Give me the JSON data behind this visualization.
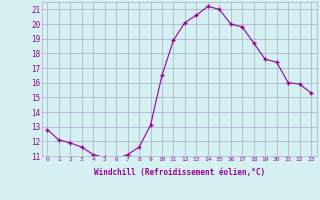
{
  "x": [
    0,
    1,
    2,
    3,
    4,
    5,
    6,
    7,
    8,
    9,
    10,
    11,
    12,
    13,
    14,
    15,
    16,
    17,
    18,
    19,
    20,
    21,
    22,
    23
  ],
  "y": [
    12.8,
    12.1,
    11.9,
    11.6,
    11.1,
    10.9,
    10.8,
    11.1,
    11.6,
    13.1,
    16.5,
    18.9,
    20.1,
    20.6,
    21.2,
    21.0,
    20.0,
    19.8,
    18.7,
    17.6,
    17.4,
    16.0,
    15.9,
    15.3
  ],
  "line_color": "#990099",
  "marker": "+",
  "marker_size": 3,
  "bg_color": "#d4f0f0",
  "grid_color": "#aaaacc",
  "xlabel": "Windchill (Refroidissement éolien,°C)",
  "xlabel_color": "#990099",
  "tick_color": "#990099",
  "ylim": [
    11,
    21.5
  ],
  "xlim": [
    -0.5,
    23.5
  ],
  "yticks": [
    11,
    12,
    13,
    14,
    15,
    16,
    17,
    18,
    19,
    20,
    21
  ],
  "xticks": [
    0,
    1,
    2,
    3,
    4,
    5,
    6,
    7,
    8,
    9,
    10,
    11,
    12,
    13,
    14,
    15,
    16,
    17,
    18,
    19,
    20,
    21,
    22,
    23
  ]
}
